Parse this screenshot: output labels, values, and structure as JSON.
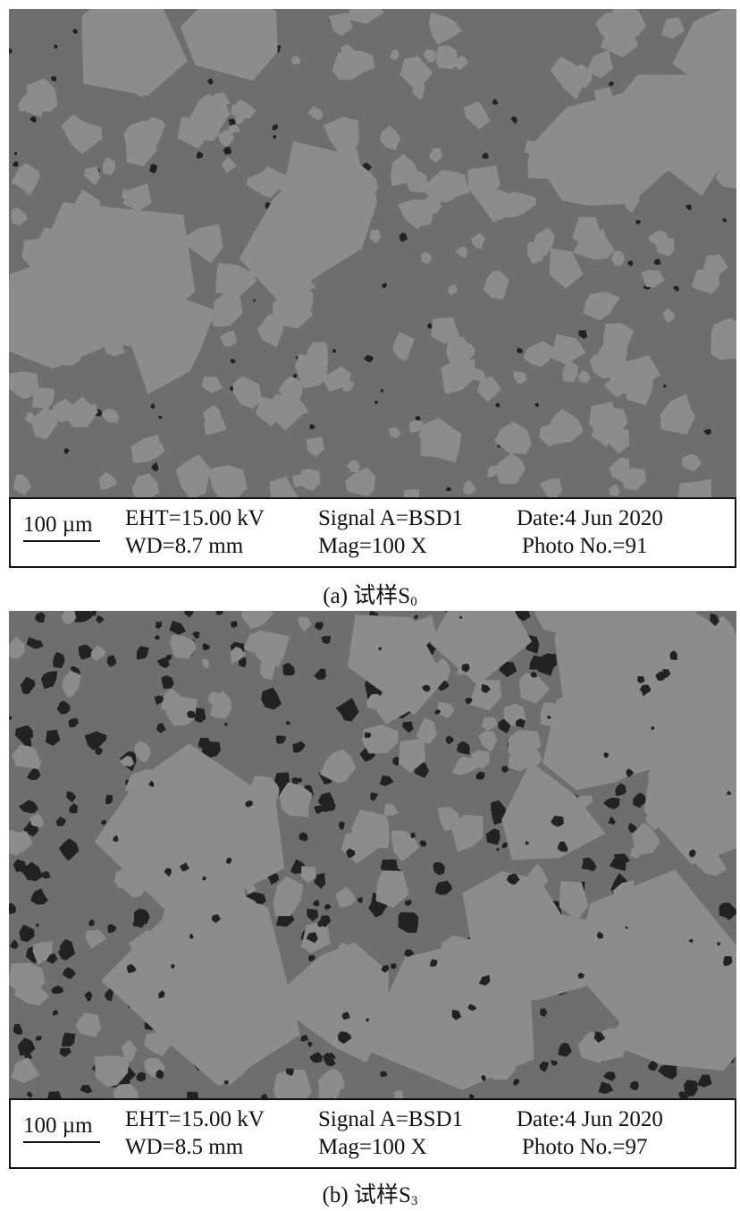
{
  "panels": [
    {
      "scale_bar": "100 µm",
      "eht": "EHT=15.00 kV",
      "wd": "WD=8.7 mm",
      "signal": "Signal A=BSD1",
      "mag": "Mag=100 X",
      "date": "Date:4 Jun 2020",
      "photo": "Photo No.=91",
      "caption_prefix": "(a) 试样S",
      "caption_sub": "0",
      "porosity": "low"
    },
    {
      "scale_bar": "100 µm",
      "eht": "EHT=15.00 kV",
      "wd": "WD=8.5 mm",
      "signal": "Signal A=BSD1",
      "mag": "Mag=100 X",
      "date": "Date:4 Jun 2020",
      "photo": "Photo No.=97",
      "caption_prefix": "(b) 试样S",
      "caption_sub": "3",
      "porosity": "high"
    }
  ],
  "colors": {
    "matrix": "#6e6e6e",
    "particle": "#8c8c8c",
    "pore": "#222222"
  }
}
